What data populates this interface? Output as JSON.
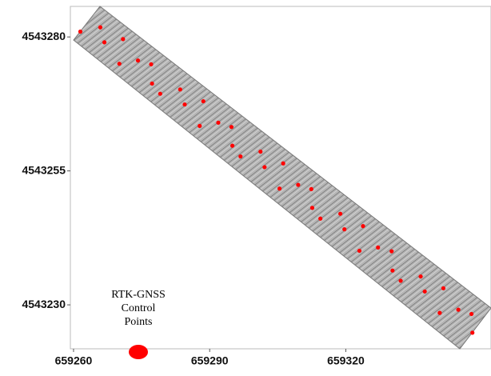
{
  "chart_data": {
    "type": "scatter",
    "xlim": [
      659259.3,
      659352
    ],
    "ylim": [
      4543221.8,
      4543285.7
    ],
    "xticks": [
      659260,
      659290,
      659320
    ],
    "yticks": [
      4543230,
      4543255,
      4543280
    ],
    "series": [
      {
        "name": "RTK-GNSS Control Points",
        "color": "#ff0000",
        "x": [
          659261.5,
          659265.9,
          659266.8,
          659270.9,
          659270.1,
          659274.2,
          659277.1,
          659277.3,
          659279.1,
          659283.5,
          659284.5,
          659288.6,
          659287.8,
          659291.9,
          659294.8,
          659295.0,
          659296.8,
          659301.2,
          659302.1,
          659306.2,
          659305.4,
          659309.5,
          659312.4,
          659312.6,
          659314.4,
          659318.8,
          659319.7,
          659323.8,
          659323.0,
          659327.1,
          659330.1,
          659330.3,
          659332.1,
          659336.5,
          659337.4,
          659341.5,
          659340.7,
          659344.8,
          659347.7,
          659347.9
        ],
        "values": [
          4543281.0,
          4543281.8,
          4543279.0,
          4543279.6,
          4543275.0,
          4543275.6,
          4543274.9,
          4543271.3,
          4543269.4,
          4543270.2,
          4543267.4,
          4543268.0,
          4543263.4,
          4543264.0,
          4543263.2,
          4543259.7,
          4543257.7,
          4543258.6,
          4543255.7,
          4543256.4,
          4543251.7,
          4543252.4,
          4543251.6,
          4543248.1,
          4543246.1,
          4543247.0,
          4543244.1,
          4543244.7,
          4543240.1,
          4543240.7,
          4543240.0,
          4543236.4,
          4543234.5,
          4543235.3,
          4543232.5,
          4543233.1,
          4543228.5,
          4543229.1,
          4543228.3,
          4543224.8
        ]
      }
    ]
  }
}
